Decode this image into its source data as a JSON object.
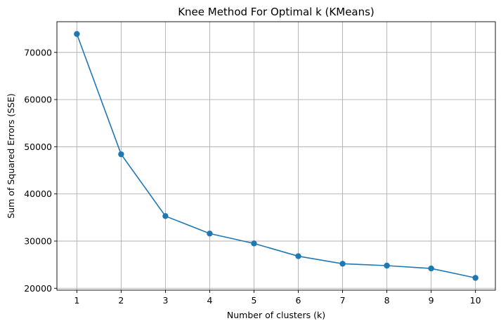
{
  "chart_data": {
    "type": "line",
    "title": "Knee Method For Optimal k (KMeans)",
    "xlabel": "Number of clusters (k)",
    "ylabel": "Sum of Squared Errors (SSE)",
    "x": [
      1,
      2,
      3,
      4,
      5,
      6,
      7,
      8,
      9,
      10
    ],
    "series": [
      {
        "values": [
          73900,
          48400,
          35300,
          31600,
          29500,
          26800,
          25200,
          24800,
          24200,
          22200
        ],
        "color": "#1f77b4",
        "marker": "circle"
      }
    ],
    "xticks": [
      1,
      2,
      3,
      4,
      5,
      6,
      7,
      8,
      9,
      10
    ],
    "yticks": [
      20000,
      30000,
      40000,
      50000,
      60000,
      70000
    ],
    "xlim": [
      0.55,
      10.45
    ],
    "ylim": [
      19600,
      76500
    ],
    "grid": true
  }
}
